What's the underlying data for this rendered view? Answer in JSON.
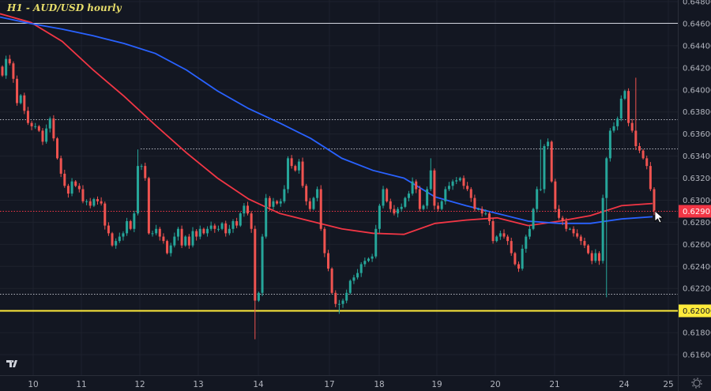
{
  "chart_data": {
    "type": "candlestick",
    "title": "H1 - AUD/USD hourly",
    "ylim": [
      0.6152,
      0.6481
    ],
    "yticks": [
      "0.64800",
      "0.64600",
      "0.64400",
      "0.64200",
      "0.64000",
      "0.63800",
      "0.63600",
      "0.63400",
      "0.63200",
      "0.63000",
      "0.62800",
      "0.62600",
      "0.62400",
      "0.62200",
      "0.62000",
      "0.61800",
      "0.61600"
    ],
    "xticks": [
      "10",
      "11",
      "12",
      "13",
      "14",
      "17",
      "18",
      "19",
      "20",
      "21",
      "24",
      "25"
    ],
    "grid": true,
    "closes": [
      0.6413,
      0.6428,
      0.6424,
      0.641,
      0.6388,
      0.6395,
      0.6381,
      0.637,
      0.6367,
      0.6367,
      0.6363,
      0.6353,
      0.6365,
      0.6374,
      0.6356,
      0.6338,
      0.6324,
      0.6313,
      0.6306,
      0.6317,
      0.6313,
      0.631,
      0.6299,
      0.6299,
      0.6295,
      0.6301,
      0.6299,
      0.6297,
      0.6277,
      0.627,
      0.6259,
      0.6263,
      0.6267,
      0.627,
      0.6281,
      0.6274,
      0.6288,
      0.6331,
      0.6331,
      0.632,
      0.627,
      0.627,
      0.6274,
      0.6267,
      0.6263,
      0.6252,
      0.6259,
      0.6267,
      0.6274,
      0.6259,
      0.6267,
      0.6259,
      0.6272,
      0.6267,
      0.6274,
      0.627,
      0.6274,
      0.6277,
      0.6274,
      0.6274,
      0.6279,
      0.627,
      0.6274,
      0.6281,
      0.6277,
      0.6288,
      0.6295,
      0.6288,
      0.6274,
      0.6209,
      0.6216,
      0.6267,
      0.6302,
      0.6294,
      0.6299,
      0.6297,
      0.6299,
      0.631,
      0.6338,
      0.6331,
      0.6327,
      0.6335,
      0.6313,
      0.6299,
      0.6292,
      0.6302,
      0.631,
      0.6274,
      0.6252,
      0.6238,
      0.6216,
      0.6206,
      0.6206,
      0.6209,
      0.6216,
      0.6227,
      0.623,
      0.6234,
      0.6242,
      0.6245,
      0.6247,
      0.6249,
      0.6274,
      0.6295,
      0.631,
      0.6299,
      0.6292,
      0.6288,
      0.6292,
      0.6294,
      0.6302,
      0.6306,
      0.6317,
      0.631,
      0.6292,
      0.6295,
      0.631,
      0.6327,
      0.6295,
      0.6292,
      0.6299,
      0.631,
      0.6313,
      0.6317,
      0.6318,
      0.632,
      0.6313,
      0.631,
      0.6302,
      0.6292,
      0.6292,
      0.6288,
      0.6288,
      0.6281,
      0.6263,
      0.6267,
      0.627,
      0.6267,
      0.6263,
      0.6252,
      0.6242,
      0.6238,
      0.6256,
      0.6267,
      0.6274,
      0.6292,
      0.631,
      0.631,
      0.6349,
      0.6353,
      0.6317,
      0.6292,
      0.6284,
      0.6281,
      0.6274,
      0.6274,
      0.627,
      0.6267,
      0.6263,
      0.6259,
      0.6252,
      0.6245,
      0.6252,
      0.6245,
      0.6302,
      0.6338,
      0.6363,
      0.6367,
      0.6374,
      0.6392,
      0.6399,
      0.637,
      0.6363,
      0.6349,
      0.6345,
      0.6338,
      0.6331,
      0.631,
      0.62901
    ],
    "notable_extremes": [
      {
        "index": 1,
        "high": 0.6431
      },
      {
        "index": 37,
        "high": 0.6346
      },
      {
        "index": 69,
        "low": 0.6174
      },
      {
        "index": 92,
        "low": 0.6197
      },
      {
        "index": 117,
        "high": 0.6338
      },
      {
        "index": 147,
        "high": 0.6355
      },
      {
        "index": 165,
        "low": 0.6212
      },
      {
        "index": 173,
        "high": 0.6411
      }
    ],
    "series": [
      {
        "color": "#f23645",
        "values": [
          0.6469,
          0.6461,
          0.6444,
          0.6418,
          0.6394,
          0.6368,
          0.6343,
          0.632,
          0.6301,
          0.6288,
          0.6281,
          0.6274,
          0.627,
          0.6269,
          0.6279,
          0.6282,
          0.6284,
          0.6277,
          0.6281,
          0.6286,
          0.6295,
          0.6297
        ]
      },
      {
        "color": "#2962ff",
        "values": [
          0.6466,
          0.646,
          0.6455,
          0.6449,
          0.6442,
          0.6433,
          0.6418,
          0.6399,
          0.6383,
          0.637,
          0.6356,
          0.6338,
          0.6327,
          0.632,
          0.6303,
          0.6295,
          0.6288,
          0.6281,
          0.6279,
          0.6279,
          0.6283,
          0.6285
        ]
      }
    ],
    "levels": [
      {
        "price": 0.6461,
        "style": "solid",
        "color": "#d1d4dc"
      },
      {
        "price": 0.6373,
        "style": "dotted",
        "color": "#b2b5be"
      },
      {
        "price": 0.6347,
        "style": "dotted",
        "color": "#b2b5be"
      },
      {
        "price": 0.6215,
        "style": "dotted",
        "color": "#b2b5be"
      },
      {
        "price": 0.62,
        "style": "solid",
        "color": "#ffeb3b",
        "label": "0.62000"
      }
    ],
    "last_price": {
      "value": 0.62901,
      "label": "0.62901",
      "color": "#f23645"
    },
    "up_color": "#26a69a",
    "down_color": "#ef5350"
  }
}
